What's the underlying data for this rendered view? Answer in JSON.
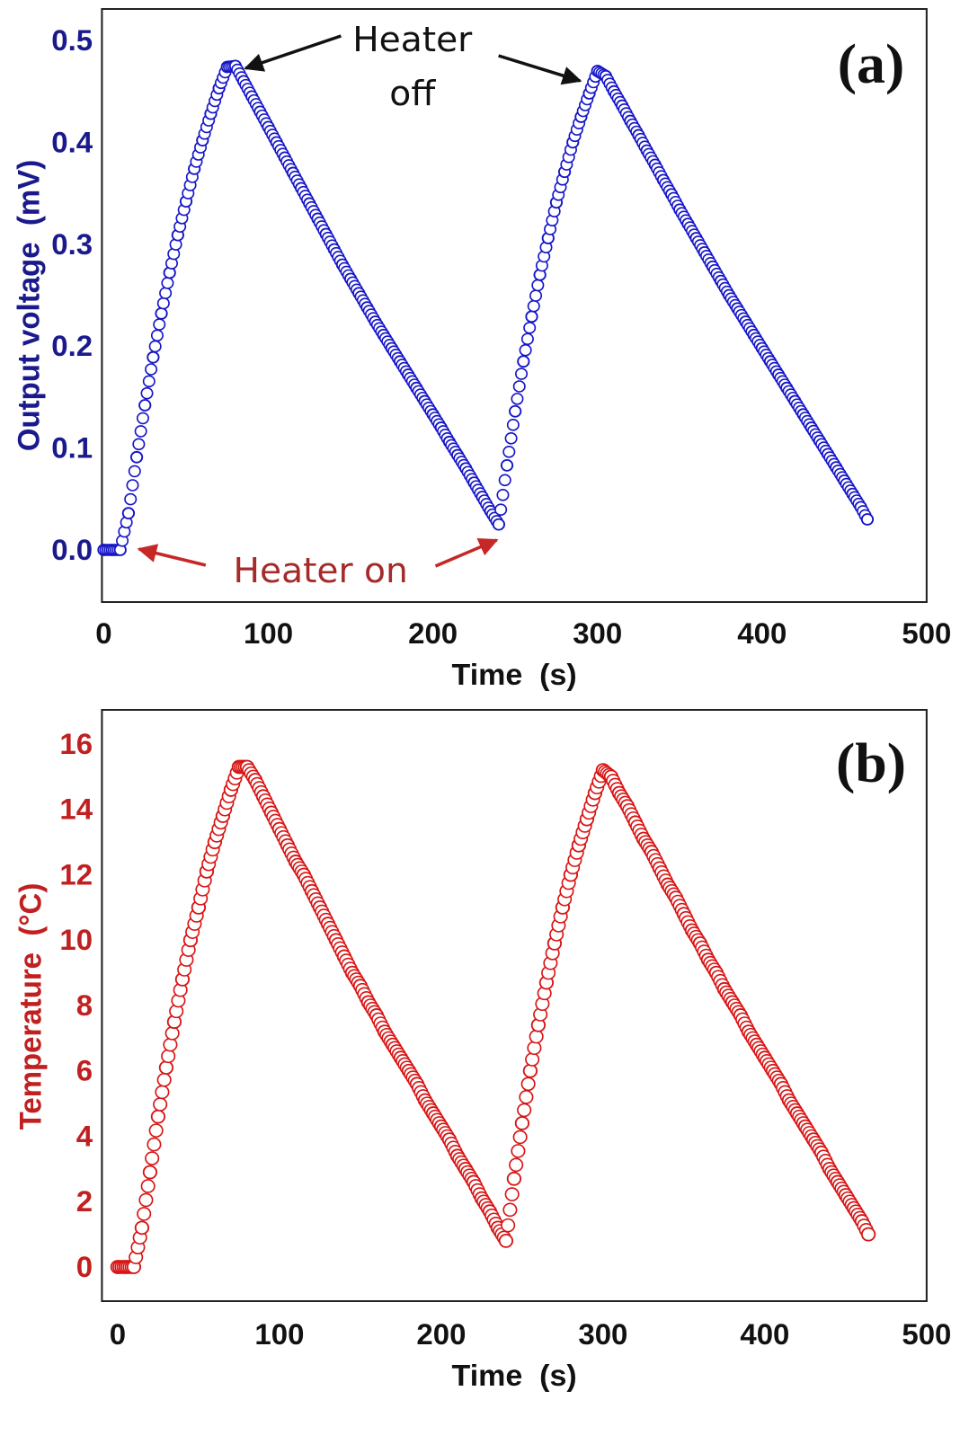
{
  "chart_data": [
    {
      "type": "scatter",
      "panel_label": "(a)",
      "xlabel": "Time  (s)",
      "ylabel": "Output voltage  (mV)",
      "xlim": [
        0,
        500
      ],
      "ylim": [
        -0.05,
        0.53
      ],
      "xticks": [
        "0",
        "100",
        "200",
        "300",
        "400",
        "500"
      ],
      "yticks": [
        "0.0",
        "0.1",
        "0.2",
        "0.3",
        "0.4",
        "0.5"
      ],
      "grid": false,
      "marker": "open-circle",
      "color": "#1515c8",
      "tick_color": "#1a1a8c",
      "annotations": {
        "heater_off_line1": "Heater",
        "heater_off_line2": "off",
        "heater_on": "Heater on",
        "heater_on_color": "#a52a2a"
      },
      "x": [
        0,
        5,
        10,
        15,
        20,
        25,
        30,
        35,
        40,
        45,
        50,
        55,
        60,
        65,
        70,
        75,
        80,
        85,
        90,
        95,
        100,
        105,
        110,
        115,
        120,
        125,
        130,
        135,
        140,
        145,
        150,
        155,
        160,
        165,
        170,
        175,
        180,
        185,
        190,
        195,
        200,
        205,
        210,
        215,
        220,
        225,
        230,
        235,
        240,
        245,
        250,
        255,
        260,
        265,
        270,
        275,
        280,
        285,
        290,
        295,
        300,
        305,
        310,
        315,
        320,
        325,
        330,
        335,
        340,
        345,
        350,
        355,
        360,
        365,
        370,
        375,
        380,
        385,
        390,
        395,
        400,
        405,
        410,
        415,
        420,
        425,
        430,
        435,
        440,
        445,
        450,
        455,
        460,
        464
      ],
      "y": [
        0,
        0,
        0,
        0.036,
        0.091,
        0.142,
        0.189,
        0.232,
        0.272,
        0.309,
        0.342,
        0.374,
        0.402,
        0.428,
        0.453,
        0.474,
        0.475,
        0.46,
        0.445,
        0.43,
        0.415,
        0.4,
        0.385,
        0.37,
        0.355,
        0.34,
        0.325,
        0.31,
        0.295,
        0.28,
        0.266,
        0.252,
        0.238,
        0.224,
        0.211,
        0.198,
        0.185,
        0.172,
        0.159,
        0.146,
        0.133,
        0.12,
        0.106,
        0.093,
        0.08,
        0.066,
        0.052,
        0.038,
        0.025,
        0.083,
        0.136,
        0.185,
        0.229,
        0.27,
        0.306,
        0.341,
        0.371,
        0.4,
        0.425,
        0.448,
        0.47,
        0.465,
        0.45,
        0.436,
        0.421,
        0.407,
        0.392,
        0.378,
        0.363,
        0.349,
        0.334,
        0.32,
        0.306,
        0.292,
        0.278,
        0.264,
        0.25,
        0.237,
        0.224,
        0.211,
        0.198,
        0.185,
        0.172,
        0.159,
        0.146,
        0.133,
        0.12,
        0.107,
        0.094,
        0.081,
        0.068,
        0.055,
        0.042,
        0.03
      ]
    },
    {
      "type": "scatter",
      "panel_label": "(b)",
      "xlabel": "Time  (s)",
      "ylabel": "Temperature  (°C)",
      "xlim": [
        -10,
        500
      ],
      "ylim": [
        -1,
        17
      ],
      "xticks": [
        "0",
        "100",
        "200",
        "300",
        "400",
        "500"
      ],
      "yticks": [
        "0",
        "2",
        "4",
        "6",
        "8",
        "10",
        "12",
        "14",
        "16"
      ],
      "grid": false,
      "marker": "open-circle",
      "color": "#d81414",
      "tick_color": "#c02020",
      "x": [
        0,
        5,
        10,
        15,
        20,
        25,
        30,
        35,
        40,
        45,
        50,
        55,
        60,
        65,
        70,
        75,
        80,
        85,
        90,
        95,
        100,
        105,
        110,
        115,
        120,
        125,
        130,
        135,
        140,
        145,
        150,
        155,
        160,
        165,
        170,
        175,
        180,
        185,
        190,
        195,
        200,
        205,
        210,
        215,
        220,
        225,
        230,
        235,
        240,
        245,
        250,
        255,
        260,
        265,
        270,
        275,
        280,
        285,
        290,
        295,
        300,
        305,
        310,
        315,
        320,
        325,
        330,
        335,
        340,
        345,
        350,
        355,
        360,
        365,
        370,
        375,
        380,
        385,
        390,
        395,
        400,
        405,
        410,
        415,
        420,
        425,
        430,
        435,
        440,
        445,
        450,
        455,
        460,
        464
      ],
      "y": [
        0,
        0,
        0,
        1.2,
        2.9,
        4.6,
        6.1,
        7.5,
        8.8,
        10.0,
        11.0,
        12.1,
        13.0,
        13.8,
        14.6,
        15.3,
        15.3,
        14.9,
        14.4,
        13.9,
        13.4,
        12.9,
        12.4,
        12.0,
        11.5,
        11.0,
        10.5,
        10.0,
        9.5,
        9.0,
        8.6,
        8.1,
        7.7,
        7.2,
        6.8,
        6.4,
        6.0,
        5.6,
        5.1,
        4.7,
        4.3,
        3.9,
        3.4,
        3.0,
        2.6,
        2.1,
        1.7,
        1.2,
        0.8,
        2.7,
        4.4,
        6.0,
        7.4,
        8.7,
        9.9,
        11.0,
        12.0,
        12.9,
        13.7,
        14.5,
        15.2,
        15.0,
        14.5,
        14.1,
        13.6,
        13.1,
        12.7,
        12.2,
        11.7,
        11.3,
        10.8,
        10.3,
        9.9,
        9.4,
        9.0,
        8.5,
        8.1,
        7.7,
        7.2,
        6.8,
        6.4,
        6.0,
        5.6,
        5.1,
        4.7,
        4.3,
        3.9,
        3.5,
        3.0,
        2.6,
        2.2,
        1.8,
        1.4,
        1.0
      ]
    }
  ]
}
